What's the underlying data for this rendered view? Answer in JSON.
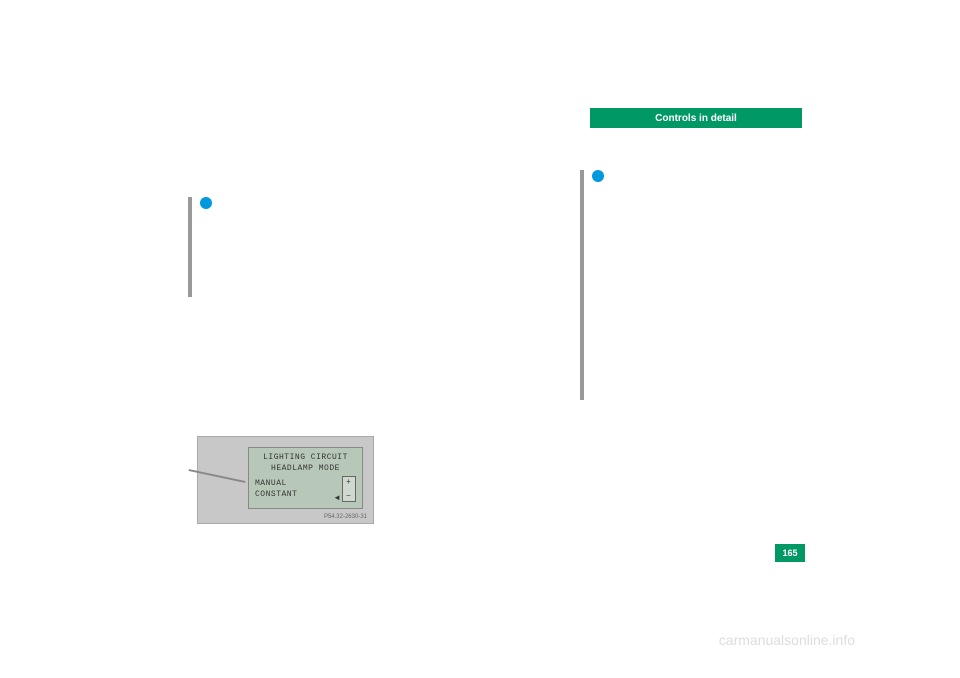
{
  "header": {
    "title": "Controls in detail",
    "bg_color": "#009966",
    "text_color": "#ffffff"
  },
  "info_icon": {
    "color": "#0099dd"
  },
  "lcd": {
    "line1": "LIGHTING CIRCUIT",
    "line2": "HEADLAMP MODE",
    "line3": "MANUAL",
    "line4": "CONSTANT",
    "plus": "+",
    "minus": "−",
    "arrow": "◄",
    "partnum": "P54.32-2630-31",
    "screen_bg": "#b8c8b8",
    "panel_bg": "#c8c8c8"
  },
  "page_number": {
    "value": "165",
    "bg_color": "#009966",
    "text_color": "#ffffff"
  },
  "watermark": {
    "text": "carmanualsonline.info",
    "color": "#dddddd"
  }
}
